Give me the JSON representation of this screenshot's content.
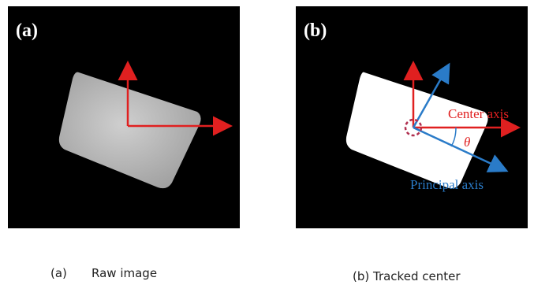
{
  "panels": [
    {
      "label": "(a)",
      "caption_label": "(a)",
      "caption": "Raw image"
    },
    {
      "label": "(b)",
      "caption": "(b) Tracked center",
      "annotations": {
        "center_axis": "Center axis",
        "angle": "θ",
        "principal_axis": "Principal axis"
      }
    }
  ]
}
